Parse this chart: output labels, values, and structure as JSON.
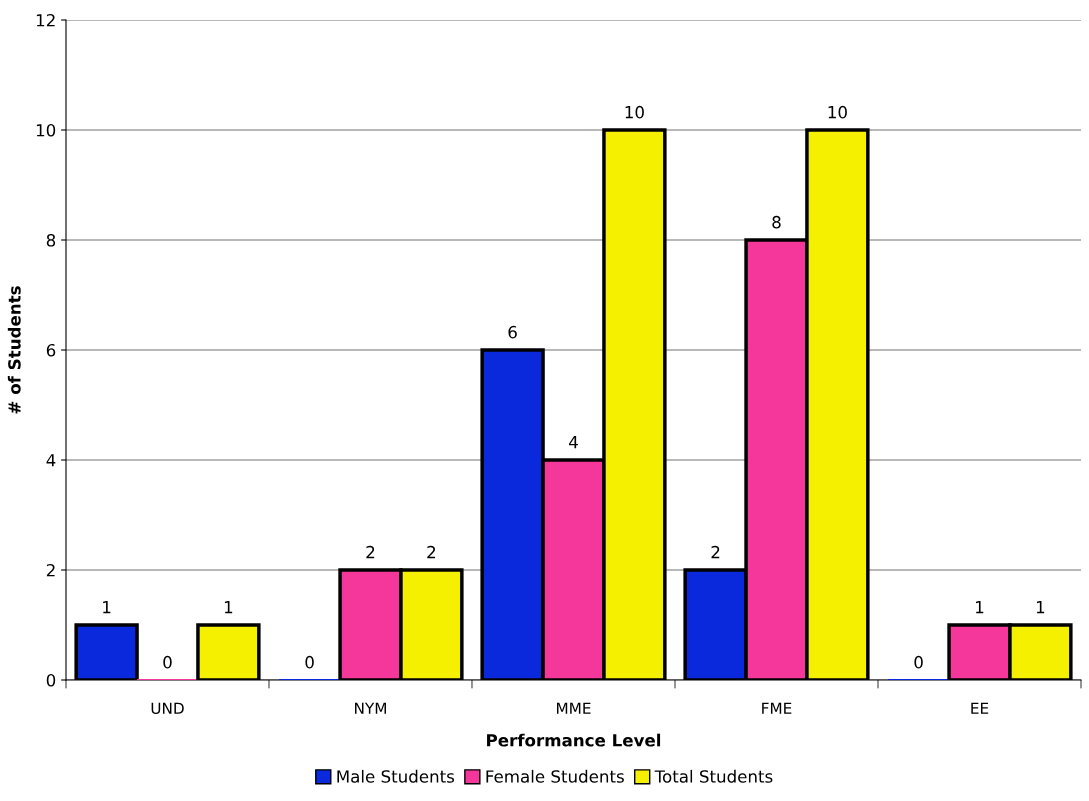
{
  "chart_data": {
    "type": "bar",
    "xlabel": "Performance Level",
    "ylabel": "# of Students",
    "categories": [
      "UND",
      "NYM",
      "MME",
      "FME",
      "EE"
    ],
    "series": [
      {
        "name": "Male Students",
        "color": "#0a28dc",
        "values": [
          1,
          0,
          6,
          2,
          0
        ]
      },
      {
        "name": "Female Students",
        "color": "#f5369a",
        "values": [
          0,
          2,
          4,
          8,
          1
        ]
      },
      {
        "name": "Total Students",
        "color": "#f5f000",
        "values": [
          1,
          2,
          10,
          10,
          1
        ]
      }
    ],
    "ylim": [
      0,
      12
    ],
    "yticks": [
      0,
      2,
      4,
      6,
      8,
      10,
      12
    ],
    "grid": "y",
    "legend": "bottom",
    "data_labels": true
  }
}
